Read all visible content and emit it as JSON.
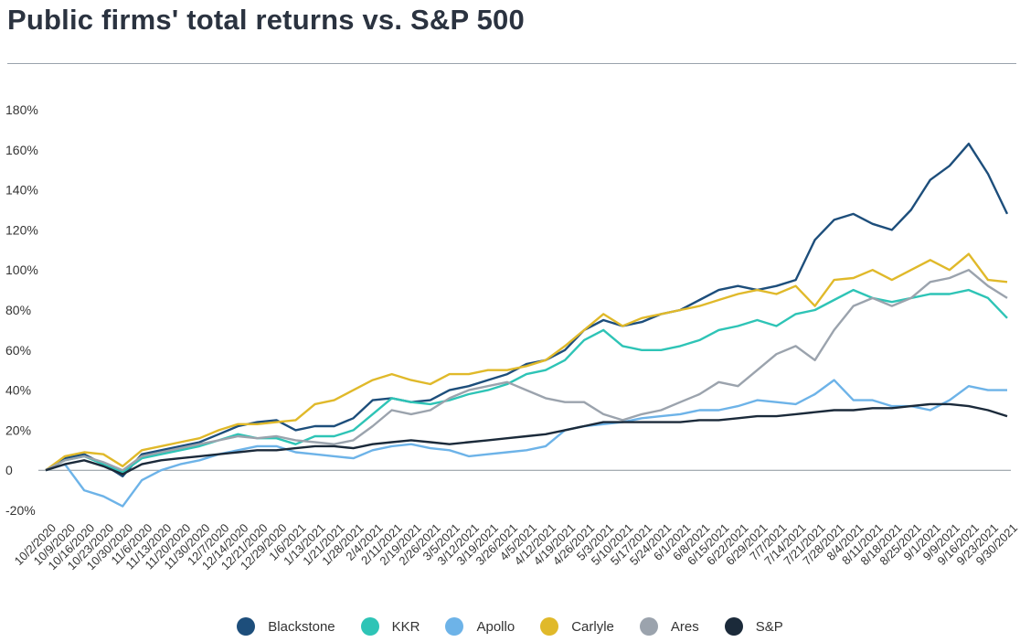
{
  "title": "Public firms' total returns vs. S&P 500",
  "chart_data": {
    "type": "line",
    "title": "Public firms' total returns vs. S&P 500",
    "xlabel": "",
    "ylabel": "",
    "ylim": [
      -20,
      180
    ],
    "y_ticks": [
      180,
      160,
      140,
      120,
      100,
      80,
      60,
      40,
      20,
      0,
      -20
    ],
    "y_tick_labels": [
      "180%",
      "160%",
      "140%",
      "120%",
      "100%",
      "80%",
      "60%",
      "40%",
      "20%",
      "0",
      "-20%"
    ],
    "x_tick_labels": [
      "10/2/2020",
      "10/9/2020",
      "10/16/2020",
      "10/23/2020",
      "10/30/2020",
      "11/6/2020",
      "11/13/2020",
      "11/20/2020",
      "11/30/2020",
      "12/7/2020",
      "12/14/2020",
      "12/21/2020",
      "12/29/2020",
      "1/6/2021",
      "1/13/2021",
      "1/21/2021",
      "1/28/2021",
      "2/4/2021",
      "2/11/2021",
      "2/19/2021",
      "2/26/2021",
      "3/5/2021",
      "3/12/2021",
      "3/19/2021",
      "3/26/2021",
      "4/5/2021",
      "4/12/2021",
      "4/19/2021",
      "4/26/2021",
      "5/3/2021",
      "5/10/2021",
      "5/17/2021",
      "5/24/2021",
      "6/1/2021",
      "6/8/2021",
      "6/15/2021",
      "6/22/2021",
      "6/29/2021",
      "7/7/2021",
      "7/14/2021",
      "7/21/2021",
      "7/28/2021",
      "8/4/2021",
      "8/11/2021",
      "8/18/2021",
      "8/25/2021",
      "9/1/2021",
      "9/9/2021",
      "9/16/2021",
      "9/23/2021",
      "9/30/2021"
    ],
    "grid": false,
    "legend_position": "bottom",
    "x": [
      "10/2/2020",
      "10/9/2020",
      "10/16/2020",
      "10/23/2020",
      "10/30/2020",
      "11/6/2020",
      "11/13/2020",
      "11/20/2020",
      "11/30/2020",
      "12/7/2020",
      "12/14/2020",
      "12/21/2020",
      "12/29/2020",
      "1/6/2021",
      "1/13/2021",
      "1/21/2021",
      "1/28/2021",
      "2/4/2021",
      "2/11/2021",
      "2/19/2021",
      "2/26/2021",
      "3/5/2021",
      "3/12/2021",
      "3/19/2021",
      "3/26/2021",
      "4/5/2021",
      "4/12/2021",
      "4/19/2021",
      "4/26/2021",
      "5/3/2021",
      "5/10/2021",
      "5/17/2021",
      "5/24/2021",
      "6/1/2021",
      "6/8/2021",
      "6/15/2021",
      "6/22/2021",
      "6/29/2021",
      "7/7/2021",
      "7/14/2021",
      "7/21/2021",
      "7/28/2021",
      "8/4/2021",
      "8/11/2021",
      "8/18/2021",
      "8/25/2021",
      "9/1/2021",
      "9/9/2021",
      "9/16/2021",
      "9/23/2021",
      "9/30/2021"
    ],
    "series": [
      {
        "name": "Blackstone",
        "color": "#1d4e7b",
        "values": [
          0,
          6,
          8,
          3,
          -3,
          8,
          10,
          12,
          14,
          18,
          22,
          24,
          25,
          20,
          22,
          22,
          26,
          35,
          36,
          34,
          35,
          40,
          42,
          45,
          48,
          53,
          55,
          60,
          70,
          75,
          72,
          74,
          78,
          80,
          85,
          90,
          92,
          90,
          92,
          95,
          115,
          125,
          128,
          123,
          120,
          130,
          145,
          152,
          163,
          148,
          128
        ]
      },
      {
        "name": "KKR",
        "color": "#2ec4b6",
        "values": [
          0,
          5,
          7,
          3,
          -1,
          6,
          8,
          10,
          12,
          15,
          18,
          16,
          16,
          13,
          17,
          17,
          20,
          28,
          36,
          34,
          33,
          35,
          38,
          40,
          43,
          48,
          50,
          55,
          65,
          70,
          62,
          60,
          60,
          62,
          65,
          70,
          72,
          75,
          72,
          78,
          80,
          85,
          90,
          86,
          84,
          86,
          88,
          88,
          90,
          86,
          76
        ]
      },
      {
        "name": "Apollo",
        "color": "#6db3e8",
        "values": [
          0,
          3,
          -10,
          -13,
          -18,
          -5,
          0,
          3,
          5,
          8,
          10,
          12,
          12,
          9,
          8,
          7,
          6,
          10,
          12,
          13,
          11,
          10,
          7,
          8,
          9,
          10,
          12,
          20,
          22,
          23,
          24,
          26,
          27,
          28,
          30,
          30,
          32,
          35,
          34,
          33,
          38,
          45,
          35,
          35,
          32,
          32,
          30,
          35,
          42,
          40,
          40
        ]
      },
      {
        "name": "Carlyle",
        "color": "#e0b92a",
        "values": [
          0,
          7,
          9,
          8,
          2,
          10,
          12,
          14,
          16,
          20,
          23,
          23,
          24,
          25,
          33,
          35,
          40,
          45,
          48,
          45,
          43,
          48,
          48,
          50,
          50,
          52,
          55,
          62,
          70,
          78,
          72,
          76,
          78,
          80,
          82,
          85,
          88,
          90,
          88,
          92,
          82,
          95,
          96,
          100,
          95,
          100,
          105,
          100,
          108,
          95,
          94
        ]
      },
      {
        "name": "Ares",
        "color": "#9ba3ad",
        "values": [
          0,
          5,
          7,
          4,
          0,
          7,
          9,
          11,
          13,
          15,
          17,
          16,
          17,
          15,
          14,
          13,
          15,
          22,
          30,
          28,
          30,
          36,
          40,
          42,
          44,
          40,
          36,
          34,
          34,
          28,
          25,
          28,
          30,
          34,
          38,
          44,
          42,
          50,
          58,
          62,
          55,
          70,
          82,
          86,
          82,
          86,
          94,
          96,
          100,
          92,
          86
        ]
      },
      {
        "name": "S&P",
        "color": "#1b2a3a",
        "values": [
          0,
          3,
          5,
          2,
          -2,
          3,
          5,
          6,
          7,
          8,
          9,
          10,
          10,
          11,
          12,
          12,
          11,
          13,
          14,
          15,
          14,
          13,
          14,
          15,
          16,
          17,
          18,
          20,
          22,
          24,
          24,
          24,
          24,
          24,
          25,
          25,
          26,
          27,
          27,
          28,
          29,
          30,
          30,
          31,
          31,
          32,
          33,
          33,
          32,
          30,
          27
        ]
      }
    ]
  }
}
